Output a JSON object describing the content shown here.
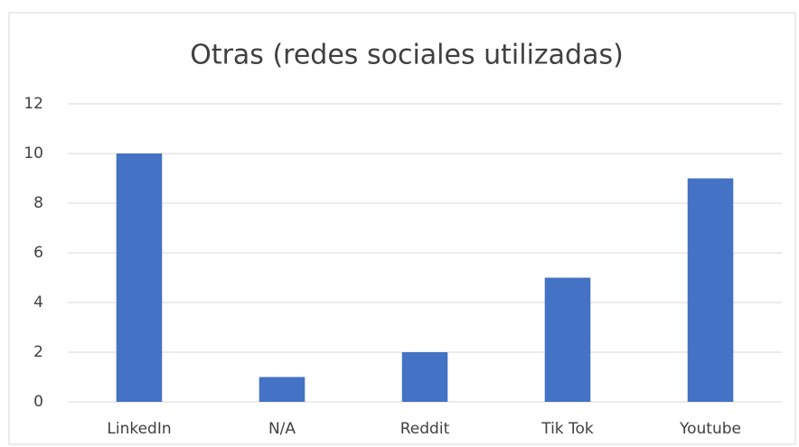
{
  "chart_data": {
    "type": "bar",
    "title": "Otras (redes sociales utilizadas)",
    "categories": [
      "LinkedIn",
      "N/A",
      "Reddit",
      "Tik Tok",
      "Youtube"
    ],
    "values": [
      10,
      1,
      2,
      5,
      9
    ],
    "color": "#4472c4",
    "ylim": [
      0,
      12
    ],
    "yticks": [
      0,
      2,
      4,
      6,
      8,
      10,
      12
    ],
    "grid": true
  }
}
